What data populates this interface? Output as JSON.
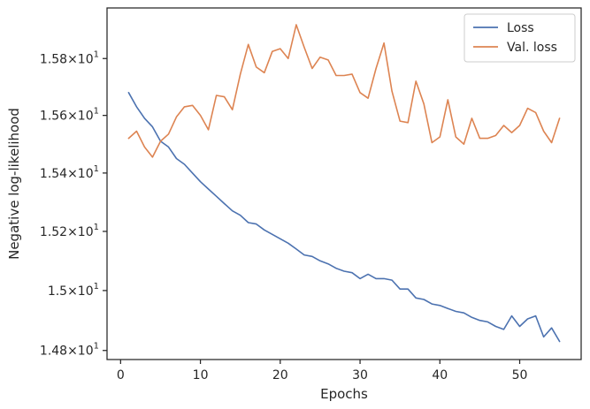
{
  "chart_data": {
    "type": "line",
    "title": "",
    "xlabel": "Epochs",
    "ylabel": "Negative log-likelihood",
    "xlim": [
      -1.7,
      57.7
    ],
    "ylim": [
      14.77,
      15.98
    ],
    "y_scale": "log",
    "grid": false,
    "legend_position": "top-right",
    "x_ticks": [
      {
        "value": 0,
        "label": "0"
      },
      {
        "value": 10,
        "label": "10"
      },
      {
        "value": 20,
        "label": "20"
      },
      {
        "value": 30,
        "label": "30"
      },
      {
        "value": 40,
        "label": "40"
      },
      {
        "value": 50,
        "label": "50"
      }
    ],
    "y_ticks": [
      {
        "value": 14.8,
        "mantissa": "1.48",
        "base": "10",
        "exp": "1"
      },
      {
        "value": 15.0,
        "mantissa": "1.5",
        "base": "10",
        "exp": "1"
      },
      {
        "value": 15.2,
        "mantissa": "1.52",
        "base": "10",
        "exp": "1"
      },
      {
        "value": 15.4,
        "mantissa": "1.54",
        "base": "10",
        "exp": "1"
      },
      {
        "value": 15.6,
        "mantissa": "1.56",
        "base": "10",
        "exp": "1"
      },
      {
        "value": 15.8,
        "mantissa": "1.58",
        "base": "10",
        "exp": "1"
      }
    ],
    "x": [
      1,
      2,
      3,
      4,
      5,
      6,
      7,
      8,
      9,
      10,
      11,
      12,
      13,
      14,
      15,
      16,
      17,
      18,
      19,
      20,
      21,
      22,
      23,
      24,
      25,
      26,
      27,
      28,
      29,
      30,
      31,
      32,
      33,
      34,
      35,
      36,
      37,
      38,
      39,
      40,
      41,
      42,
      43,
      44,
      45,
      46,
      47,
      48,
      49,
      50,
      51,
      52,
      53,
      54,
      55
    ],
    "series": [
      {
        "name": "Loss",
        "color": "#4c72b0",
        "values": [
          15.68,
          15.63,
          15.59,
          15.56,
          15.51,
          15.49,
          15.45,
          15.43,
          15.4,
          15.37,
          15.345,
          15.32,
          15.295,
          15.27,
          15.255,
          15.23,
          15.225,
          15.205,
          15.19,
          15.175,
          15.16,
          15.14,
          15.12,
          15.115,
          15.1,
          15.09,
          15.075,
          15.065,
          15.06,
          15.04,
          15.055,
          15.04,
          15.04,
          15.035,
          15.005,
          15.005,
          14.975,
          14.97,
          14.955,
          14.95,
          14.94,
          14.93,
          14.925,
          14.91,
          14.9,
          14.895,
          14.88,
          14.87,
          14.915,
          14.88,
          14.905,
          14.915,
          14.845,
          14.875,
          14.83
        ]
      },
      {
        "name": "Val. loss",
        "color": "#dd8452",
        "values": [
          15.52,
          15.545,
          15.49,
          15.455,
          15.51,
          15.535,
          15.595,
          15.63,
          15.635,
          15.6,
          15.55,
          15.67,
          15.665,
          15.62,
          15.745,
          15.85,
          15.77,
          15.75,
          15.825,
          15.835,
          15.8,
          15.92,
          15.84,
          15.765,
          15.805,
          15.795,
          15.74,
          15.74,
          15.745,
          15.68,
          15.66,
          15.765,
          15.855,
          15.685,
          15.58,
          15.575,
          15.72,
          15.64,
          15.505,
          15.525,
          15.655,
          15.525,
          15.5,
          15.59,
          15.52,
          15.52,
          15.53,
          15.565,
          15.54,
          15.565,
          15.625,
          15.61,
          15.545,
          15.505,
          15.59
        ]
      }
    ]
  }
}
